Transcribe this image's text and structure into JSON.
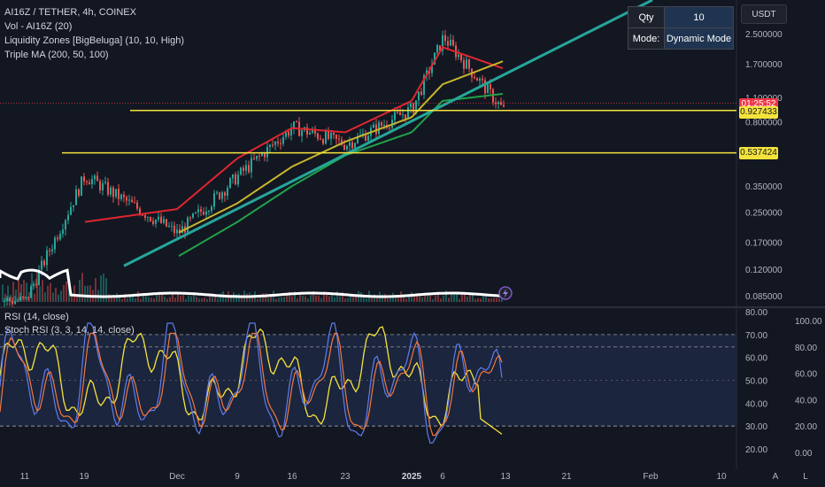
{
  "legend": {
    "symbol": "AI16Z / TETHER, 4h, COINEX",
    "volume": "Vol - AI16Z (20)",
    "liquidity": "Liquidity Zones [BigBeluga] (10, 10, High)",
    "ma": "Triple MA (200, 50, 100)"
  },
  "osc_legend": {
    "rsi": "RSI (14, close)",
    "stoch": "Stoch RSI (3, 3, 14, 14, close)"
  },
  "panel": {
    "qty_label": "Qty",
    "qty_value": "10",
    "mode_label": "Mode:",
    "mode_value": "Dynamic Mode"
  },
  "currency": "USDT",
  "price_tags": {
    "current": "01:25:52",
    "current_price": "0.927433",
    "level_low": "0.537424"
  },
  "colors": {
    "background": "#131722",
    "ma_red": "#e0262f",
    "ma_yellow": "#c8b52d",
    "ma_green": "#21a14a",
    "trend": "#26a69a",
    "liquidity": "#f5e33b",
    "rsi": "#f5e33b",
    "stoch_k": "#5f7cf2",
    "stoch_d": "#f4783c"
  },
  "chart_data": [
    {
      "type": "line",
      "title": "AI16Z / TETHER, 4h, COINEX",
      "scale": "log",
      "y_ticks": [
        "2.500000",
        "1.700000",
        "1.100000",
        "0.800000",
        "0.537424",
        "0.350000",
        "0.250000",
        "0.170000",
        "0.120000",
        "0.085000"
      ],
      "x_ticks": [
        "11",
        "19",
        "Dec",
        "9",
        "16",
        "23",
        "2025",
        "6",
        "13",
        "21",
        "Feb",
        "10"
      ],
      "series": [
        {
          "name": "Price",
          "x": [
            "11",
            "19",
            "Dec",
            "9",
            "16",
            "23",
            "2025",
            "6",
            "13"
          ],
          "values": [
            0.08,
            0.4,
            0.19,
            0.4,
            0.75,
            0.6,
            0.95,
            2.4,
            0.93
          ]
        },
        {
          "name": "MA 50",
          "x": [
            "19",
            "Dec",
            "9",
            "16",
            "23",
            "2025",
            "6",
            "13"
          ],
          "values": [
            0.22,
            0.26,
            0.5,
            0.74,
            0.7,
            1.05,
            2.1,
            1.6
          ]
        },
        {
          "name": "MA 100",
          "x": [
            "Dec",
            "9",
            "16",
            "23",
            "2025",
            "6",
            "13"
          ],
          "values": [
            0.19,
            0.28,
            0.45,
            0.62,
            0.85,
            1.3,
            1.75
          ]
        },
        {
          "name": "MA 200",
          "x": [
            "Dec",
            "9",
            "16",
            "23",
            "2025",
            "6",
            "13"
          ],
          "values": [
            0.14,
            0.22,
            0.35,
            0.52,
            0.7,
            1.05,
            1.15
          ]
        }
      ],
      "levels": [
        0.927433,
        0.537424
      ]
    },
    {
      "type": "line",
      "title": "RSI (14, close)",
      "y_ticks": [
        "80.00",
        "70.00",
        "60.00",
        "50.00",
        "40.00",
        "30.00",
        "20.00"
      ],
      "bands": [
        70,
        30
      ],
      "last_value": 26
    },
    {
      "type": "line",
      "title": "Stoch RSI (3, 3, 14, 14, close)",
      "y_ticks": [
        "100.00",
        "80.00",
        "60.00",
        "40.00",
        "20.00",
        "0.00"
      ],
      "bands": [
        80,
        20
      ]
    }
  ]
}
